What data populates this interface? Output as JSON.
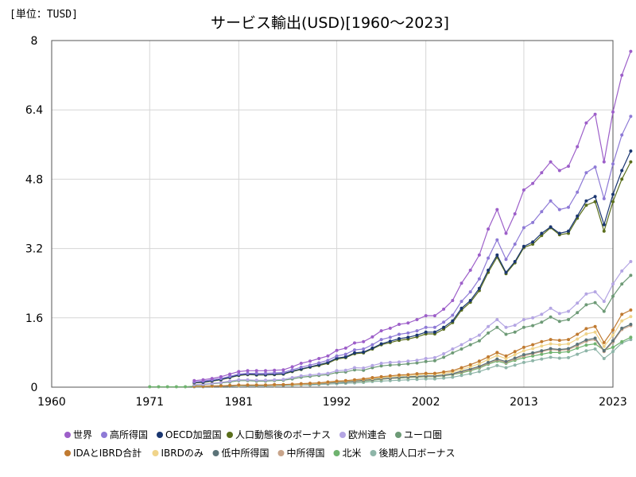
{
  "chart_data": {
    "type": "line",
    "title": "サービス輸出(USD)[1960～2023]",
    "unit_label": "[単位：TUSD]",
    "xlabel": "",
    "ylabel": "",
    "x_ticks": [
      "1960",
      "1971",
      "1981",
      "1992",
      "2002",
      "2013",
      "2023"
    ],
    "y_ticks": [
      "0",
      "1.6",
      "3.2",
      "4.8",
      "6.4",
      "8"
    ],
    "xlim": [
      1960,
      2023
    ],
    "ylim": [
      0,
      8
    ],
    "grid": true,
    "legend_position": "bottom",
    "series": [
      {
        "name": "世界",
        "color": "#9d5fc9",
        "start": 1976,
        "values": [
          0.15,
          0.17,
          0.2,
          0.24,
          0.3,
          0.36,
          0.38,
          0.38,
          0.38,
          0.39,
          0.4,
          0.47,
          0.55,
          0.6,
          0.66,
          0.72,
          0.85,
          0.9,
          1.02,
          1.05,
          1.16,
          1.3,
          1.36,
          1.45,
          1.48,
          1.56,
          1.65,
          1.65,
          1.8,
          2.0,
          2.4,
          2.7,
          3.05,
          3.65,
          4.1,
          3.55,
          4.0,
          4.55,
          4.7,
          4.95,
          5.2,
          5.0,
          5.1,
          5.55,
          6.1,
          6.3,
          5.2,
          6.35,
          7.2,
          7.75
        ]
      },
      {
        "name": "高所得国",
        "color": "#8e7ad6",
        "start": 1976,
        "values": [
          0.12,
          0.14,
          0.17,
          0.2,
          0.25,
          0.3,
          0.32,
          0.32,
          0.32,
          0.33,
          0.34,
          0.4,
          0.46,
          0.51,
          0.56,
          0.62,
          0.72,
          0.76,
          0.86,
          0.88,
          0.98,
          1.1,
          1.15,
          1.22,
          1.25,
          1.3,
          1.38,
          1.38,
          1.5,
          1.66,
          1.98,
          2.2,
          2.5,
          2.98,
          3.4,
          2.95,
          3.3,
          3.68,
          3.8,
          4.05,
          4.3,
          4.1,
          4.15,
          4.5,
          4.95,
          5.08,
          4.35,
          5.15,
          5.82,
          6.25
        ]
      },
      {
        "name": "OECD加盟国",
        "color": "#1a3670",
        "start": 1976,
        "values": [
          0.11,
          0.12,
          0.15,
          0.18,
          0.23,
          0.28,
          0.3,
          0.29,
          0.29,
          0.3,
          0.31,
          0.37,
          0.42,
          0.47,
          0.52,
          0.57,
          0.67,
          0.7,
          0.79,
          0.81,
          0.9,
          1.0,
          1.06,
          1.12,
          1.15,
          1.2,
          1.27,
          1.27,
          1.38,
          1.53,
          1.82,
          2.0,
          2.28,
          2.7,
          3.05,
          2.65,
          2.9,
          3.25,
          3.35,
          3.55,
          3.7,
          3.55,
          3.6,
          3.95,
          4.3,
          4.4,
          3.75,
          4.45,
          5.0,
          5.45
        ]
      },
      {
        "name": "人口動態後のボーナス",
        "color": "#5a6e1c",
        "start": 1976,
        "values": [
          0.1,
          0.11,
          0.14,
          0.17,
          0.22,
          0.27,
          0.29,
          0.28,
          0.28,
          0.29,
          0.3,
          0.36,
          0.41,
          0.46,
          0.5,
          0.55,
          0.65,
          0.68,
          0.77,
          0.79,
          0.88,
          0.98,
          1.03,
          1.08,
          1.11,
          1.16,
          1.23,
          1.23,
          1.34,
          1.49,
          1.78,
          1.96,
          2.23,
          2.65,
          3.0,
          2.62,
          2.87,
          3.22,
          3.3,
          3.5,
          3.68,
          3.52,
          3.55,
          3.9,
          4.2,
          4.28,
          3.6,
          4.28,
          4.8,
          5.2
        ]
      },
      {
        "name": "欧州連合",
        "color": "#b4a5e3",
        "start": 1976,
        "values": [
          0.06,
          0.07,
          0.09,
          0.11,
          0.14,
          0.17,
          0.17,
          0.16,
          0.16,
          0.17,
          0.18,
          0.22,
          0.26,
          0.28,
          0.3,
          0.32,
          0.38,
          0.39,
          0.45,
          0.44,
          0.5,
          0.55,
          0.57,
          0.58,
          0.6,
          0.62,
          0.66,
          0.68,
          0.77,
          0.88,
          0.98,
          1.1,
          1.2,
          1.4,
          1.56,
          1.38,
          1.43,
          1.56,
          1.6,
          1.68,
          1.82,
          1.7,
          1.75,
          1.94,
          2.15,
          2.2,
          1.98,
          2.38,
          2.68,
          2.9
        ]
      },
      {
        "name": "ユーロ圏",
        "color": "#6d9a76",
        "start": 1976,
        "values": [
          0.05,
          0.06,
          0.08,
          0.1,
          0.12,
          0.15,
          0.15,
          0.14,
          0.14,
          0.15,
          0.16,
          0.19,
          0.23,
          0.25,
          0.27,
          0.29,
          0.34,
          0.35,
          0.4,
          0.39,
          0.45,
          0.49,
          0.51,
          0.52,
          0.54,
          0.56,
          0.59,
          0.61,
          0.69,
          0.79,
          0.88,
          0.98,
          1.07,
          1.25,
          1.38,
          1.22,
          1.27,
          1.38,
          1.42,
          1.5,
          1.62,
          1.52,
          1.56,
          1.72,
          1.9,
          1.95,
          1.75,
          2.1,
          2.38,
          2.58
        ]
      },
      {
        "name": "IDAとIBRD合計",
        "color": "#c07a30",
        "start": 1976,
        "values": [
          0.02,
          0.02,
          0.03,
          0.03,
          0.04,
          0.05,
          0.05,
          0.05,
          0.05,
          0.06,
          0.06,
          0.07,
          0.08,
          0.09,
          0.1,
          0.12,
          0.14,
          0.15,
          0.17,
          0.19,
          0.22,
          0.24,
          0.26,
          0.28,
          0.29,
          0.31,
          0.32,
          0.32,
          0.35,
          0.38,
          0.45,
          0.52,
          0.6,
          0.7,
          0.8,
          0.72,
          0.82,
          0.92,
          0.98,
          1.05,
          1.1,
          1.08,
          1.1,
          1.22,
          1.35,
          1.4,
          1.03,
          1.32,
          1.68,
          1.78
        ]
      },
      {
        "name": "IBRDのみ",
        "color": "#f0d48a",
        "start": 1976,
        "values": [
          0.02,
          0.02,
          0.02,
          0.03,
          0.04,
          0.04,
          0.05,
          0.05,
          0.05,
          0.05,
          0.06,
          0.06,
          0.07,
          0.08,
          0.09,
          0.11,
          0.13,
          0.14,
          0.16,
          0.18,
          0.2,
          0.22,
          0.24,
          0.26,
          0.27,
          0.28,
          0.3,
          0.3,
          0.32,
          0.35,
          0.41,
          0.47,
          0.54,
          0.64,
          0.73,
          0.66,
          0.75,
          0.84,
          0.89,
          0.95,
          1.0,
          0.98,
          1.0,
          1.11,
          1.23,
          1.27,
          0.94,
          1.2,
          1.53,
          1.63
        ]
      },
      {
        "name": "低中所得国",
        "color": "#5b7378",
        "start": 1976,
        "values": [
          0.02,
          0.02,
          0.02,
          0.03,
          0.03,
          0.04,
          0.04,
          0.04,
          0.04,
          0.05,
          0.05,
          0.06,
          0.07,
          0.07,
          0.08,
          0.1,
          0.11,
          0.12,
          0.14,
          0.16,
          0.18,
          0.2,
          0.21,
          0.23,
          0.24,
          0.25,
          0.26,
          0.26,
          0.28,
          0.31,
          0.37,
          0.42,
          0.48,
          0.57,
          0.65,
          0.59,
          0.67,
          0.75,
          0.79,
          0.84,
          0.89,
          0.87,
          0.89,
          0.99,
          1.09,
          1.13,
          0.84,
          1.07,
          1.36,
          1.45
        ]
      },
      {
        "name": "中所得国",
        "color": "#c8a48a",
        "start": 1976,
        "values": [
          0.02,
          0.02,
          0.02,
          0.03,
          0.03,
          0.04,
          0.04,
          0.04,
          0.04,
          0.04,
          0.05,
          0.06,
          0.06,
          0.07,
          0.08,
          0.09,
          0.11,
          0.12,
          0.13,
          0.15,
          0.17,
          0.19,
          0.2,
          0.22,
          0.23,
          0.24,
          0.25,
          0.25,
          0.27,
          0.3,
          0.35,
          0.4,
          0.46,
          0.55,
          0.63,
          0.57,
          0.65,
          0.72,
          0.77,
          0.82,
          0.87,
          0.85,
          0.87,
          0.96,
          1.06,
          1.1,
          0.82,
          1.04,
          1.33,
          1.42
        ]
      },
      {
        "name": "北米",
        "color": "#6fb36f",
        "start": 1971,
        "values": [
          0.01,
          0.01,
          0.01,
          0.01,
          0.01,
          0.02,
          0.02,
          0.02,
          0.03,
          0.03,
          0.04,
          0.04,
          0.04,
          0.04,
          0.05,
          0.05,
          0.06,
          0.07,
          0.08,
          0.09,
          0.1,
          0.11,
          0.12,
          0.13,
          0.14,
          0.16,
          0.18,
          0.2,
          0.21,
          0.22,
          0.23,
          0.24,
          0.24,
          0.26,
          0.29,
          0.33,
          0.38,
          0.44,
          0.53,
          0.6,
          0.55,
          0.62,
          0.68,
          0.72,
          0.76,
          0.8,
          0.8,
          0.82,
          0.9,
          0.97,
          1.0,
          0.85,
          0.92,
          1.05,
          1.15
        ]
      },
      {
        "name": "後期人口ボーナス",
        "color": "#8eb5a8",
        "start": 1976,
        "values": [
          0.01,
          0.01,
          0.02,
          0.02,
          0.02,
          0.03,
          0.03,
          0.03,
          0.03,
          0.03,
          0.04,
          0.04,
          0.05,
          0.05,
          0.06,
          0.07,
          0.08,
          0.09,
          0.1,
          0.11,
          0.13,
          0.14,
          0.15,
          0.16,
          0.17,
          0.18,
          0.19,
          0.19,
          0.21,
          0.23,
          0.27,
          0.31,
          0.36,
          0.43,
          0.5,
          0.45,
          0.51,
          0.57,
          0.61,
          0.65,
          0.69,
          0.67,
          0.68,
          0.76,
          0.84,
          0.88,
          0.66,
          0.82,
          1.02,
          1.1
        ]
      }
    ]
  }
}
